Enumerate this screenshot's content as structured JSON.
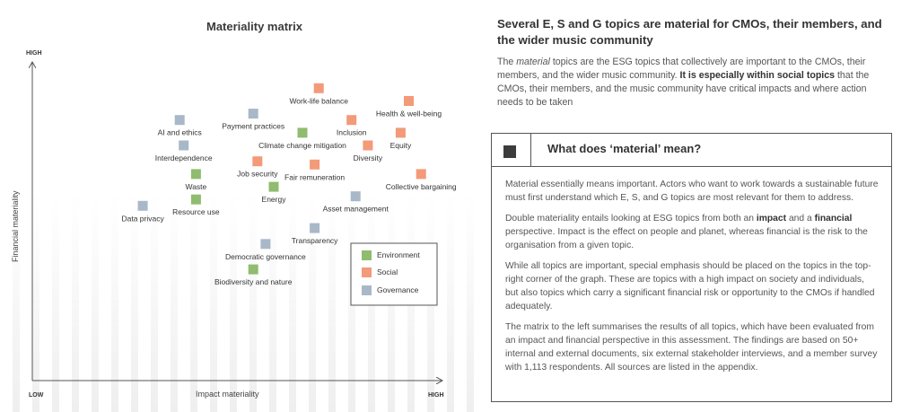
{
  "chart_data": {
    "type": "scatter",
    "title": "Materiality matrix",
    "xlabel": "Impact materiality",
    "ylabel": "Financial materiality",
    "x_low_label": "LOW",
    "x_high_label": "HIGH",
    "y_high_label": "HIGH",
    "xlim": [
      0,
      100
    ],
    "ylim": [
      0,
      100
    ],
    "colors": {
      "Environment": "#8fbc6e",
      "Social": "#f39a79",
      "Governance": "#a9b8c8"
    },
    "legend": [
      "Environment",
      "Social",
      "Governance"
    ],
    "points": [
      {
        "name": "Work-life balance",
        "category": "Social",
        "x": 70,
        "y": 92
      },
      {
        "name": "Health & well-being",
        "category": "Social",
        "x": 92,
        "y": 88
      },
      {
        "name": "Payment practices",
        "category": "Governance",
        "x": 54,
        "y": 84
      },
      {
        "name": "AI and ethics",
        "category": "Governance",
        "x": 36,
        "y": 82
      },
      {
        "name": "Inclusion",
        "category": "Social",
        "x": 78,
        "y": 82
      },
      {
        "name": "Equity",
        "category": "Social",
        "x": 90,
        "y": 78
      },
      {
        "name": "Climate change mitigation",
        "category": "Environment",
        "x": 66,
        "y": 78
      },
      {
        "name": "Diversity",
        "category": "Social",
        "x": 82,
        "y": 74
      },
      {
        "name": "Interdependence",
        "category": "Governance",
        "x": 37,
        "y": 74
      },
      {
        "name": "Job security",
        "category": "Social",
        "x": 55,
        "y": 69
      },
      {
        "name": "Fair remuneration",
        "category": "Social",
        "x": 69,
        "y": 68
      },
      {
        "name": "Collective bargaining",
        "category": "Social",
        "x": 95,
        "y": 65
      },
      {
        "name": "Waste",
        "category": "Environment",
        "x": 40,
        "y": 65
      },
      {
        "name": "Energy",
        "category": "Environment",
        "x": 59,
        "y": 61
      },
      {
        "name": "Resource use",
        "category": "Environment",
        "x": 40,
        "y": 57
      },
      {
        "name": "Asset management",
        "category": "Governance",
        "x": 79,
        "y": 58
      },
      {
        "name": "Data privacy",
        "category": "Governance",
        "x": 27,
        "y": 55
      },
      {
        "name": "Transparency",
        "category": "Governance",
        "x": 69,
        "y": 48
      },
      {
        "name": "Democratic governance",
        "category": "Governance",
        "x": 57,
        "y": 43
      },
      {
        "name": "Biodiversity and nature",
        "category": "Environment",
        "x": 54,
        "y": 35
      }
    ]
  },
  "right": {
    "heading": "Several E, S and G topics are material for CMOs, their members, and the wider music community",
    "intro_1": "The ",
    "intro_em": "material",
    "intro_2": " topics are the ESG topics that collectively are important to the CMOs, their members, and the wider music community. ",
    "intro_bold": "It is especially within social topics",
    "intro_3": " that the CMOs, their members, and the music community have critical impacts and where action needs to be taken"
  },
  "box": {
    "title": "What does ‘material’ mean?",
    "p1": "Material essentially means important. Actors who want to work towards a sustainable future must first understand which E, S, and G topics are most relevant for them to address.",
    "p2_a": "Double materiality entails looking at ESG topics from both an ",
    "p2_b1": "impact",
    "p2_c": " and a ",
    "p2_b2": "financial",
    "p2_d": " perspective. Impact is the effect on people and planet, whereas financial is the risk to the organisation from a given topic.",
    "p3": "While all topics are important, special emphasis should be placed on the topics in the top-right corner of the graph. These are topics with a high impact on society and individuals, but also topics which carry a significant financial risk or opportunity to the CMOs if handled adequately.",
    "p4": "The matrix to the left summarises the results of all topics, which have been evaluated from an impact and financial perspective in this assessment. The findings are based on 50+ internal and external documents, six external stakeholder interviews, and a member survey with 1,113 respondents. All sources are listed in the appendix."
  }
}
